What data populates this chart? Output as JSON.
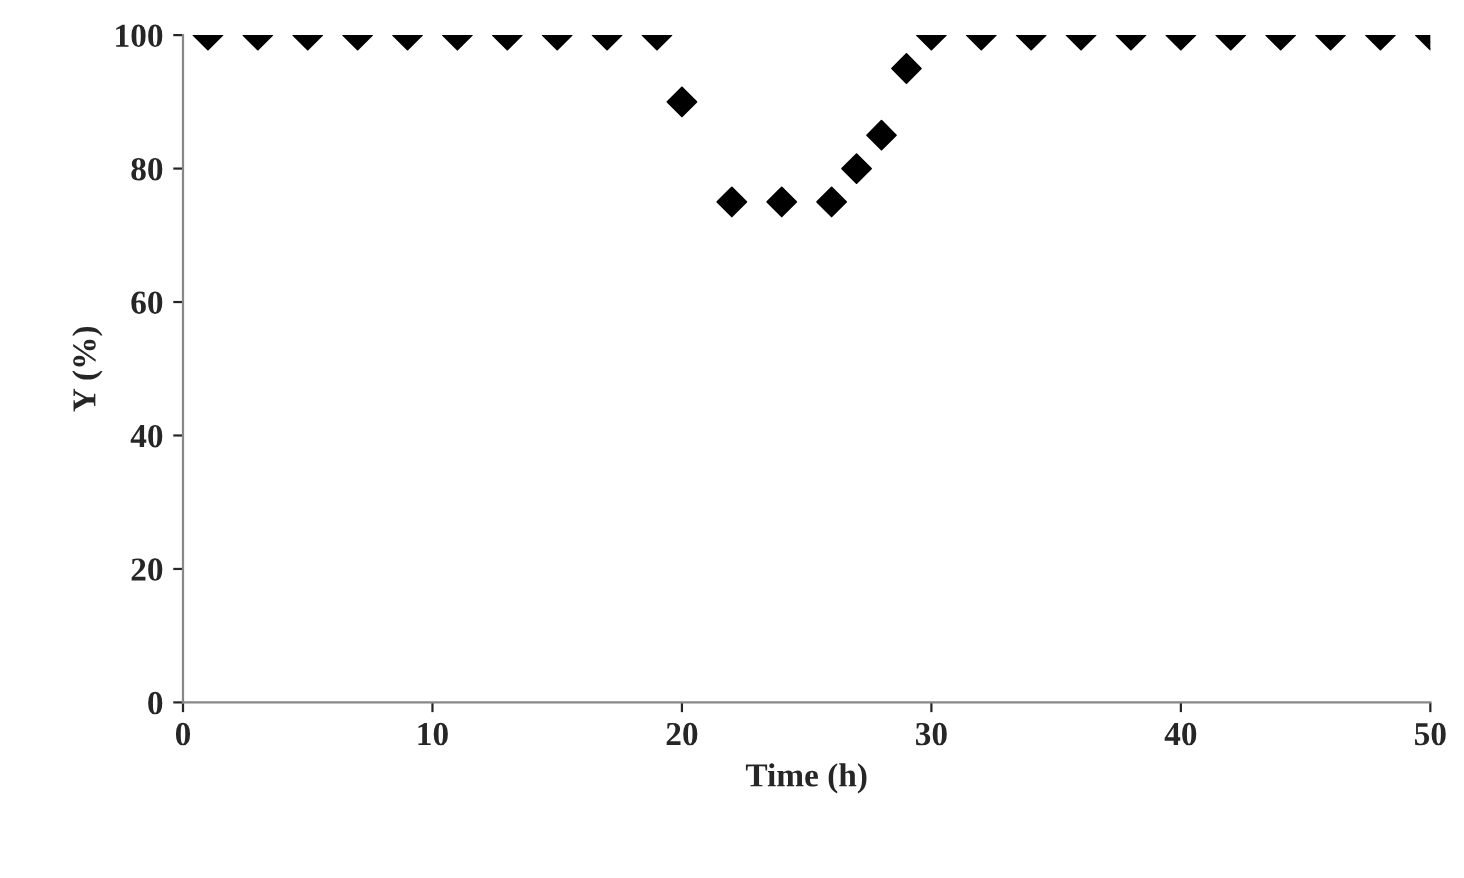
{
  "chart_data": {
    "type": "scatter",
    "xlabel": "Time (h)",
    "ylabel": "Y (%)",
    "x": [
      1,
      3,
      5,
      7,
      9,
      11,
      13,
      15,
      17,
      19,
      20,
      22,
      24,
      26,
      27,
      28,
      29,
      30,
      32,
      34,
      36,
      38,
      40,
      42,
      44,
      46,
      48,
      50
    ],
    "values": [
      100,
      100,
      100,
      100,
      100,
      100,
      100,
      100,
      100,
      100,
      90,
      75,
      75,
      75,
      80,
      85,
      95,
      100,
      100,
      100,
      100,
      100,
      100,
      100,
      100,
      100,
      100,
      100
    ],
    "color": "#000000",
    "marker": "diamond",
    "xlim": [
      0,
      50
    ],
    "xticks": [
      0,
      10,
      20,
      30,
      40,
      50
    ],
    "ylim": [
      0,
      100
    ],
    "yticks": [
      0,
      20,
      40,
      60,
      80,
      100
    ],
    "grid": false,
    "legend": false
  }
}
